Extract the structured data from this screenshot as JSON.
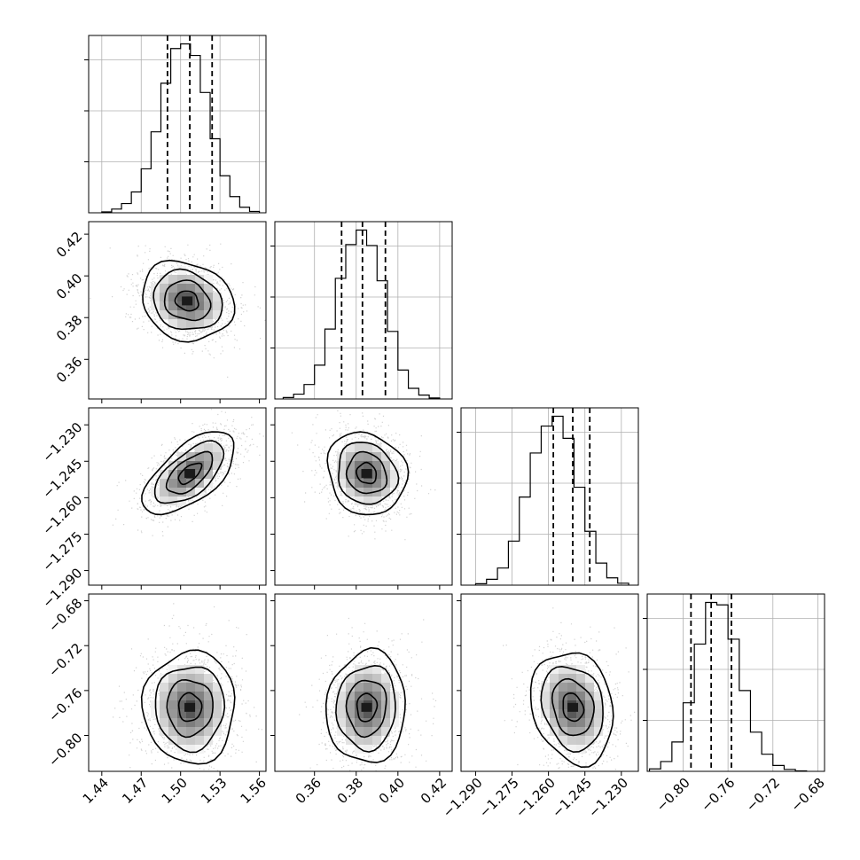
{
  "chart_data": {
    "type": "corner",
    "title": "",
    "parameters": [
      "",
      "",
      "",
      ""
    ],
    "n_samples_approx": 5000,
    "colors": {
      "samples": "#9a9a9a",
      "lines": "#000000",
      "density_dark": "#3a3a3a"
    },
    "grid": true,
    "histograms": [
      {
        "param_index": 0,
        "xlim": [
          1.43,
          1.565
        ],
        "bins": [
          1.44,
          1.4475,
          1.455,
          1.4625,
          1.47,
          1.4775,
          1.485,
          1.4925,
          1.5,
          1.5075,
          1.515,
          1.5225,
          1.53,
          1.5375,
          1.545,
          1.5525,
          1.56
        ],
        "counts": [
          2,
          8,
          20,
          45,
          95,
          175,
          280,
          355,
          365,
          340,
          260,
          160,
          80,
          35,
          12,
          3
        ],
        "quantiles": [
          1.49,
          1.507,
          1.524
        ]
      },
      {
        "param_index": 1,
        "xlim": [
          0.341,
          0.426
        ],
        "bins": [
          0.345,
          0.35,
          0.355,
          0.36,
          0.365,
          0.37,
          0.375,
          0.38,
          0.385,
          0.39,
          0.395,
          0.4,
          0.405,
          0.41,
          0.415,
          0.42
        ],
        "counts": [
          3,
          10,
          30,
          70,
          145,
          250,
          320,
          350,
          318,
          245,
          140,
          60,
          22,
          8,
          2
        ],
        "quantiles": [
          0.373,
          0.383,
          0.394
        ]
      },
      {
        "param_index": 2,
        "xlim": [
          -1.296,
          -1.223
        ],
        "bins": [
          -1.29,
          -1.2855,
          -1.281,
          -1.2765,
          -1.272,
          -1.2675,
          -1.263,
          -1.2585,
          -1.254,
          -1.2495,
          -1.245,
          -1.2405,
          -1.236,
          -1.2315,
          -1.227
        ],
        "counts": [
          3,
          12,
          35,
          90,
          180,
          270,
          325,
          345,
          300,
          200,
          110,
          45,
          15,
          4
        ],
        "quantiles": [
          -1.258,
          -1.25,
          -1.243
        ]
      },
      {
        "param_index": 3,
        "xlim": [
          -0.832,
          -0.674
        ],
        "bins": [
          -0.83,
          -0.82,
          -0.81,
          -0.8,
          -0.79,
          -0.78,
          -0.77,
          -0.76,
          -0.75,
          -0.74,
          -0.73,
          -0.72,
          -0.71,
          -0.7,
          -0.69
        ],
        "counts": [
          5,
          20,
          60,
          140,
          260,
          345,
          340,
          270,
          165,
          80,
          35,
          12,
          4,
          1
        ],
        "quantiles": [
          -0.793,
          -0.775,
          -0.757
        ]
      }
    ],
    "panels_2d": [
      {
        "x_param": 0,
        "y_param": 1,
        "center": [
          1.505,
          0.388
        ],
        "sd": [
          0.0175,
          0.0095
        ],
        "corr": -0.15,
        "xlim": [
          1.43,
          1.565
        ],
        "ylim": [
          0.341,
          0.426
        ]
      },
      {
        "x_param": 0,
        "y_param": 2,
        "center": [
          1.507,
          -1.25
        ],
        "sd": [
          0.0175,
          0.0085
        ],
        "corr": 0.62,
        "xlim": [
          1.43,
          1.565
        ],
        "ylim": [
          -1.296,
          -1.223
        ]
      },
      {
        "x_param": 1,
        "y_param": 2,
        "center": [
          0.385,
          -1.25
        ],
        "sd": [
          0.0095,
          0.0085
        ],
        "corr": -0.12,
        "xlim": [
          0.341,
          0.426
        ],
        "ylim": [
          -1.296,
          -1.223
        ]
      },
      {
        "x_param": 0,
        "y_param": 3,
        "center": [
          1.507,
          -0.775
        ],
        "sd": [
          0.0175,
          0.025
        ],
        "corr": 0.0,
        "xlim": [
          1.43,
          1.565
        ],
        "ylim": [
          -0.832,
          -0.674
        ]
      },
      {
        "x_param": 1,
        "y_param": 3,
        "center": [
          0.385,
          -0.775
        ],
        "sd": [
          0.0095,
          0.025
        ],
        "corr": 0.05,
        "xlim": [
          0.341,
          0.426
        ],
        "ylim": [
          -0.832,
          -0.674
        ]
      },
      {
        "x_param": 2,
        "y_param": 3,
        "center": [
          -1.25,
          -0.775
        ],
        "sd": [
          0.0085,
          0.025
        ],
        "corr": -0.18,
        "xlim": [
          -1.296,
          -1.223
        ],
        "ylim": [
          -0.832,
          -0.674
        ]
      }
    ],
    "contour_levels_sigma": [
      0.5,
      1.0,
      1.5,
      2.0
    ],
    "x_tick_labels": [
      [
        "1.44",
        "1.47",
        "1.50",
        "1.53",
        "1.56"
      ],
      [
        "0.36",
        "0.38",
        "0.40",
        "0.42"
      ],
      [
        "−1.290",
        "−1.275",
        "−1.260",
        "−1.245",
        "−1.230"
      ],
      [
        "−0.80",
        "−0.76",
        "−0.72",
        "−0.68"
      ]
    ],
    "x_tick_values": [
      [
        1.44,
        1.47,
        1.5,
        1.53,
        1.56
      ],
      [
        0.36,
        0.38,
        0.4,
        0.42
      ],
      [
        -1.29,
        -1.275,
        -1.26,
        -1.245,
        -1.23
      ],
      [
        -0.8,
        -0.76,
        -0.72,
        -0.68
      ]
    ],
    "y_tick_labels": {
      "1": [
        "0.36",
        "0.38",
        "0.40",
        "0.42"
      ],
      "2": [
        "−1.290",
        "−1.275",
        "−1.260",
        "−1.245",
        "−1.230"
      ],
      "3": [
        "−0.80",
        "−0.76",
        "−0.72",
        "−0.68"
      ]
    },
    "y_tick_values": {
      "1": [
        0.36,
        0.38,
        0.4,
        0.42
      ],
      "2": [
        -1.29,
        -1.275,
        -1.26,
        -1.245,
        -1.23
      ],
      "3": [
        -0.8,
        -0.76,
        -0.72,
        -0.68
      ]
    }
  }
}
